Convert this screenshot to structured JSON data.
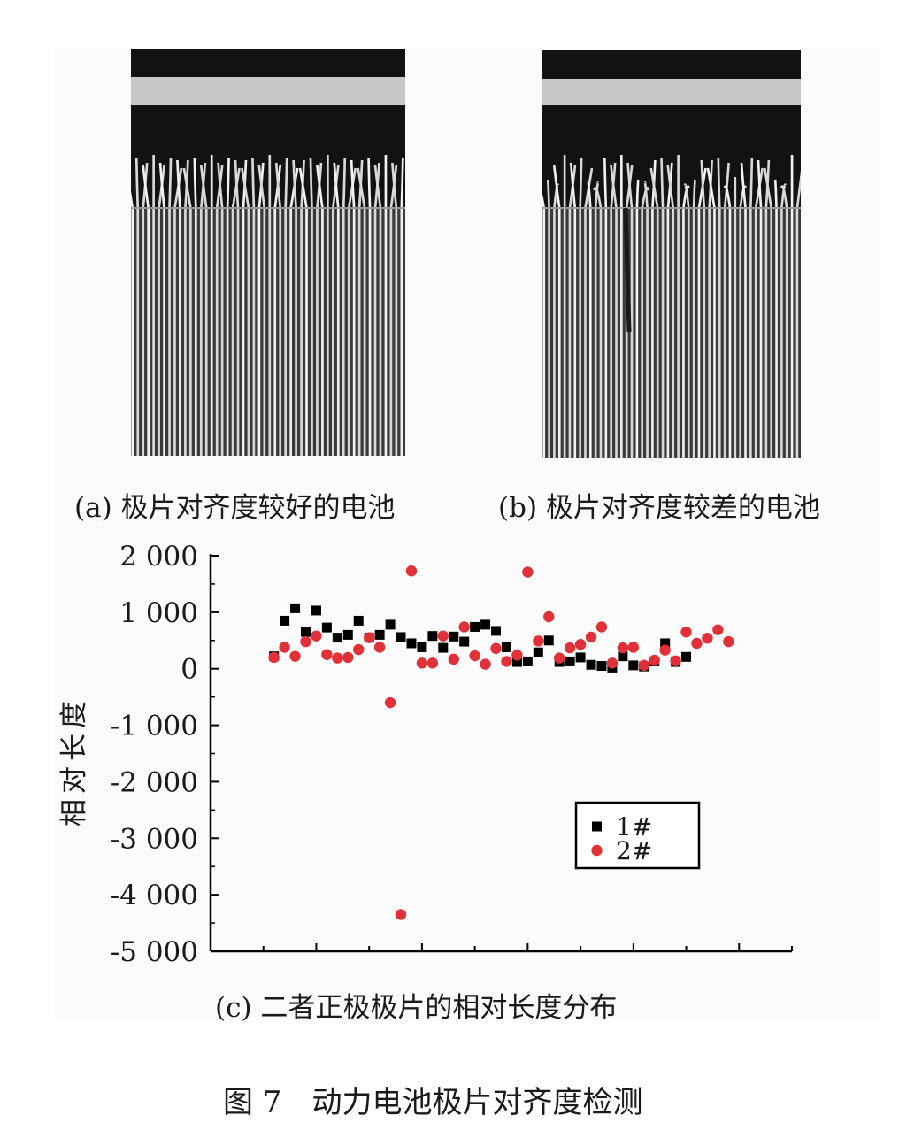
{
  "captions": {
    "a": "(a) 极片对齐度较好的电池",
    "b": "(b) 极片对齐度较差的电池",
    "c": "(c) 二者正极极片的相对长度分布"
  },
  "figure_title": "图 7　动力电池极片对齐度检测",
  "chart_data": {
    "type": "scatter",
    "title": "",
    "xlabel": "",
    "ylabel": "相对长度",
    "ylim": [
      -5000,
      2000
    ],
    "xlim": [
      0,
      55
    ],
    "yticks": [
      2000,
      1000,
      0,
      -1000,
      -2000,
      -3000,
      -4000,
      -5000
    ],
    "ytick_labels": [
      "2 000",
      "1 000",
      "0",
      "-1 000",
      "-2 000",
      "-3 000",
      "-4 000",
      "-5 000"
    ],
    "legend_position": "lower-right",
    "series": [
      {
        "name": "1#",
        "marker": "square",
        "color": "#000000",
        "points": [
          [
            6,
            220
          ],
          [
            7,
            850
          ],
          [
            8,
            1070
          ],
          [
            9,
            650
          ],
          [
            10,
            1030
          ],
          [
            11,
            730
          ],
          [
            12,
            550
          ],
          [
            13,
            600
          ],
          [
            14,
            850
          ],
          [
            15,
            550
          ],
          [
            16,
            600
          ],
          [
            17,
            780
          ],
          [
            18,
            560
          ],
          [
            19,
            450
          ],
          [
            20,
            380
          ],
          [
            21,
            580
          ],
          [
            22,
            370
          ],
          [
            23,
            570
          ],
          [
            24,
            480
          ],
          [
            25,
            740
          ],
          [
            26,
            780
          ],
          [
            27,
            670
          ],
          [
            28,
            380
          ],
          [
            29,
            120
          ],
          [
            30,
            130
          ],
          [
            31,
            290
          ],
          [
            32,
            500
          ],
          [
            33,
            120
          ],
          [
            34,
            130
          ],
          [
            35,
            200
          ],
          [
            36,
            70
          ],
          [
            37,
            50
          ],
          [
            38,
            20
          ],
          [
            39,
            220
          ],
          [
            40,
            60
          ],
          [
            41,
            40
          ],
          [
            42,
            130
          ],
          [
            43,
            450
          ],
          [
            44,
            120
          ],
          [
            45,
            210
          ]
        ]
      },
      {
        "name": "2#",
        "marker": "circle",
        "color": "#e03038",
        "points": [
          [
            6,
            200
          ],
          [
            7,
            380
          ],
          [
            8,
            220
          ],
          [
            9,
            480
          ],
          [
            10,
            580
          ],
          [
            11,
            250
          ],
          [
            12,
            190
          ],
          [
            13,
            200
          ],
          [
            14,
            340
          ],
          [
            15,
            550
          ],
          [
            16,
            380
          ],
          [
            17,
            -600
          ],
          [
            18,
            -4350
          ],
          [
            19,
            1730
          ],
          [
            20,
            100
          ],
          [
            21,
            100
          ],
          [
            22,
            580
          ],
          [
            23,
            170
          ],
          [
            24,
            740
          ],
          [
            25,
            230
          ],
          [
            26,
            80
          ],
          [
            27,
            360
          ],
          [
            28,
            130
          ],
          [
            29,
            240
          ],
          [
            30,
            1710
          ],
          [
            31,
            490
          ],
          [
            32,
            920
          ],
          [
            33,
            190
          ],
          [
            34,
            370
          ],
          [
            35,
            430
          ],
          [
            36,
            560
          ],
          [
            37,
            740
          ],
          [
            38,
            100
          ],
          [
            39,
            370
          ],
          [
            40,
            380
          ],
          [
            41,
            60
          ],
          [
            42,
            150
          ],
          [
            43,
            330
          ],
          [
            44,
            140
          ],
          [
            45,
            650
          ],
          [
            46,
            450
          ],
          [
            47,
            540
          ],
          [
            48,
            690
          ],
          [
            49,
            480
          ]
        ]
      }
    ]
  }
}
